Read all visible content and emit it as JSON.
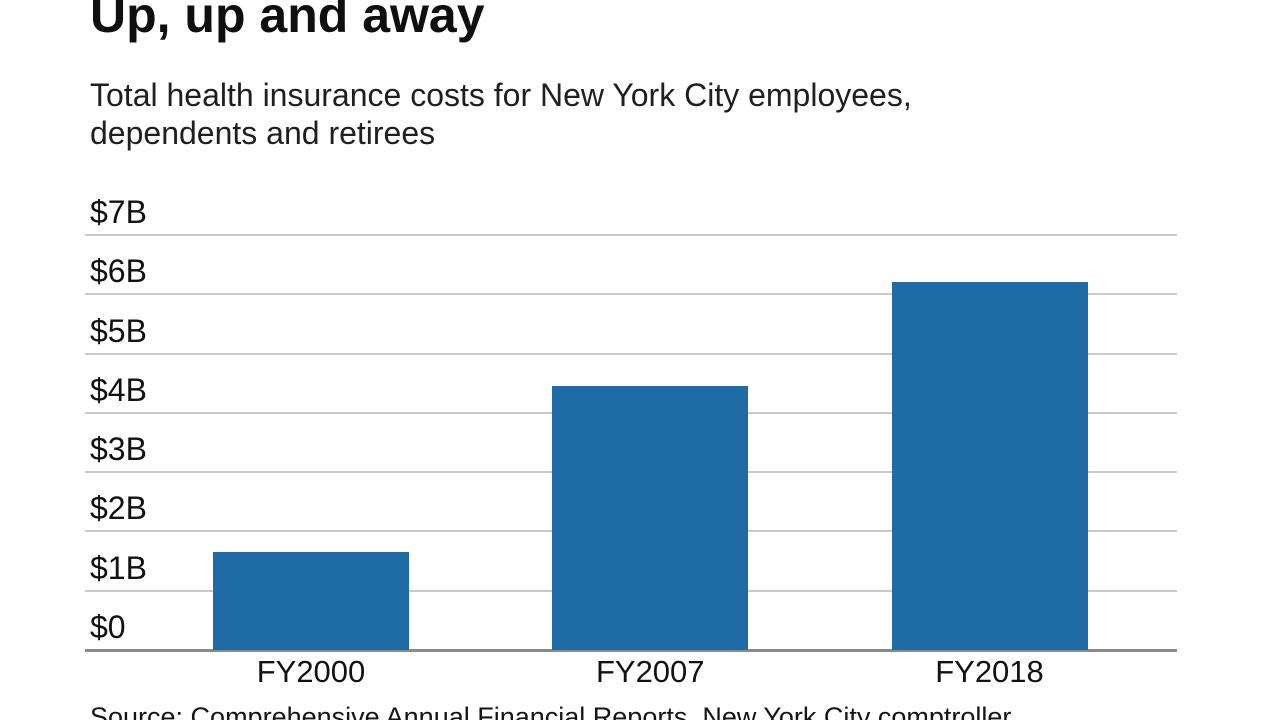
{
  "header": {
    "title": "Up, up and away",
    "subtitle": "Total health insurance costs for New York City employees,\ndependents and retirees"
  },
  "chart_data": {
    "type": "bar",
    "title": "Up, up and away",
    "subtitle": "Total health insurance costs for New York City employees, dependents and retirees",
    "categories": [
      "FY2000",
      "FY2007",
      "FY2018"
    ],
    "values": [
      1.65,
      4.45,
      6.2
    ],
    "unit": "billions of dollars",
    "ylim": [
      0,
      7
    ],
    "y_ticks": [
      0,
      1,
      2,
      3,
      4,
      5,
      6,
      7
    ],
    "y_tick_labels": [
      "$0",
      "$1B",
      "$2B",
      "$3B",
      "$4B",
      "$5B",
      "$6B",
      "$7B"
    ],
    "grid": "horizontal",
    "legend": "none",
    "bar_color": "#1f6ba6"
  },
  "footer": {
    "source": "Source: Comprehensive Annual Financial Reports, New York City comptroller"
  },
  "colors": {
    "bar": "#1f6ba6",
    "gridline": "#c9c9c9",
    "axis_line": "#8a8a8a",
    "text": "#111111"
  }
}
